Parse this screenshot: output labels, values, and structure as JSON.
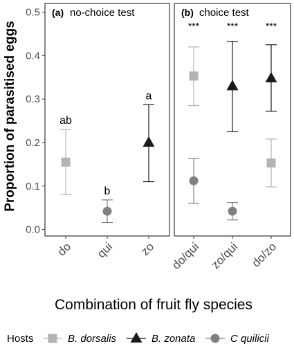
{
  "chart_data": {
    "type": "scatter",
    "ylabel": "Proportion of parasitised eggs",
    "xlabel": "Combination of fruit fly species",
    "ylim": [
      -0.015,
      0.52
    ],
    "yticks": [
      0.0,
      0.1,
      0.2,
      0.3,
      0.4,
      0.5
    ],
    "ytick_labels": [
      "0.0",
      "0.1",
      "0.2",
      "0.3",
      "0.4",
      "0.5"
    ],
    "grid": false,
    "legend_position": "bottom",
    "legend": {
      "title": "Hosts",
      "entries": [
        {
          "host": "dorsalis",
          "label": "B. dorsalis",
          "color": "#b3b3b3",
          "marker": "square"
        },
        {
          "host": "zonata",
          "label": "B. zonata",
          "color": "#1a1a1a",
          "marker": "triangle"
        },
        {
          "host": "quilicii",
          "label": "C quilicii",
          "color": "#808080",
          "marker": "circle"
        }
      ]
    },
    "panels": [
      {
        "tag": "(a)",
        "title": "no-choice test",
        "categories": [
          "do",
          "qui",
          "zo"
        ],
        "points": [
          {
            "category": "do",
            "host": "dorsalis",
            "y": 0.155,
            "lower": 0.08,
            "upper": 0.23,
            "label": "ab"
          },
          {
            "category": "qui",
            "host": "quilicii",
            "y": 0.042,
            "lower": 0.016,
            "upper": 0.068,
            "label": "b"
          },
          {
            "category": "zo",
            "host": "zonata",
            "y": 0.2,
            "lower": 0.11,
            "upper": 0.287,
            "label": "a"
          }
        ]
      },
      {
        "tag": "(b)",
        "title": "choice test",
        "categories": [
          "do/qui",
          "zo/qui",
          "do/zo"
        ],
        "points": [
          {
            "category": "do/qui",
            "host": "dorsalis",
            "y": 0.353,
            "lower": 0.285,
            "upper": 0.42,
            "label": ""
          },
          {
            "category": "do/qui",
            "host": "quilicii",
            "y": 0.112,
            "lower": 0.06,
            "upper": 0.163,
            "label": ""
          },
          {
            "category": "zo/qui",
            "host": "zonata",
            "y": 0.33,
            "lower": 0.225,
            "upper": 0.433,
            "label": ""
          },
          {
            "category": "zo/qui",
            "host": "quilicii",
            "y": 0.042,
            "lower": 0.022,
            "upper": 0.062,
            "label": ""
          },
          {
            "category": "do/zo",
            "host": "zonata",
            "y": 0.348,
            "lower": 0.272,
            "upper": 0.425,
            "label": ""
          },
          {
            "category": "do/zo",
            "host": "dorsalis",
            "y": 0.153,
            "lower": 0.098,
            "upper": 0.208,
            "label": ""
          }
        ],
        "annotations": [
          {
            "category": "do/qui",
            "y": 0.46,
            "text": "***"
          },
          {
            "category": "zo/qui",
            "y": 0.46,
            "text": "***"
          },
          {
            "category": "do/zo",
            "y": 0.46,
            "text": "***"
          }
        ]
      }
    ]
  }
}
